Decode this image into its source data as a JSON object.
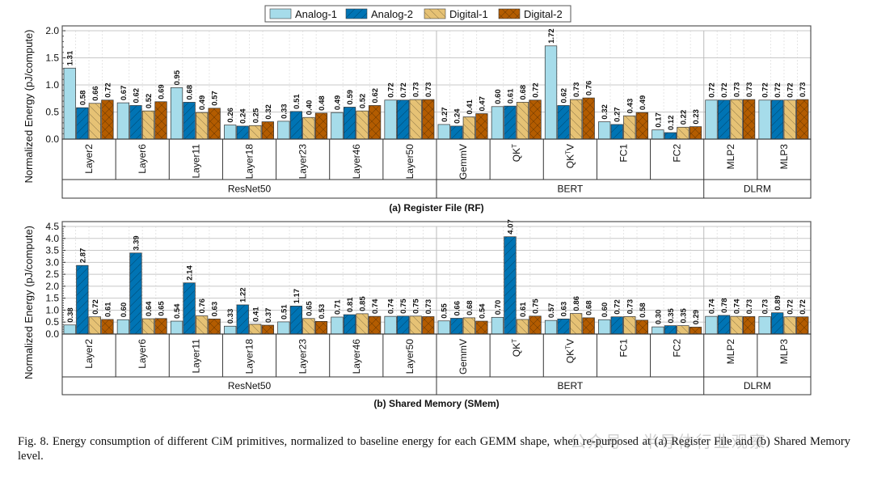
{
  "legend": [
    "Analog-1",
    "Analog-2",
    "Digital-1",
    "Digital-2"
  ],
  "colors": {
    "Analog-1": "#a6dcea",
    "Analog-2": "#0074b4",
    "Digital-1": "#e6c275",
    "Digital-2": "#b35c00"
  },
  "caption": "Fig. 8.  Energy consumption of different CiM primitives, normalized to baseline energy for each GEMM shape, when re-purposed at (a) Register File and (b) Shared Memory level.",
  "watermark": "公众号 · 半导体行业观察",
  "chart_data": [
    {
      "type": "bar",
      "title": "(a) Register File (RF)",
      "ylabel": "Normalized Energy (pJ/compute)",
      "ylim": [
        0,
        2.0
      ],
      "yticks": [
        "0.0",
        "0.5",
        "1.0",
        "1.5",
        "2.0"
      ],
      "categories": [
        "Layer2",
        "Layer6",
        "Layer11",
        "Layer18",
        "Layer23",
        "Layer46",
        "Layer50",
        "GemmV",
        "QK^T",
        "QK^TV",
        "FC1",
        "FC2",
        "MLP2",
        "MLP3"
      ],
      "groups": [
        {
          "name": "ResNet50",
          "count": 7
        },
        {
          "name": "BERT",
          "count": 5
        },
        {
          "name": "DLRM",
          "count": 2
        }
      ],
      "grid": true,
      "series": [
        {
          "name": "Analog-1",
          "values": [
            1.31,
            0.67,
            0.95,
            0.26,
            0.33,
            0.49,
            0.72,
            0.27,
            0.6,
            1.72,
            0.32,
            0.17,
            0.72,
            0.72
          ]
        },
        {
          "name": "Analog-2",
          "values": [
            0.58,
            0.62,
            0.68,
            0.24,
            0.51,
            0.59,
            0.72,
            0.24,
            0.61,
            0.62,
            0.27,
            0.12,
            0.72,
            0.72
          ]
        },
        {
          "name": "Digital-1",
          "values": [
            0.66,
            0.52,
            0.49,
            0.25,
            0.4,
            0.52,
            0.73,
            0.41,
            0.68,
            0.73,
            0.43,
            0.22,
            0.73,
            0.72
          ]
        },
        {
          "name": "Digital-2",
          "values": [
            0.72,
            0.69,
            0.57,
            0.32,
            0.48,
            0.62,
            0.73,
            0.47,
            0.72,
            0.76,
            0.49,
            0.23,
            0.73,
            0.73
          ]
        }
      ]
    },
    {
      "type": "bar",
      "title": "(b) Shared Memory (SMem)",
      "ylabel": "Normalized Energy (pJ/compute)",
      "ylim": [
        0,
        4.5
      ],
      "yticks": [
        "0.0",
        "0.5",
        "1.0",
        "1.5",
        "2.0",
        "2.5",
        "3.0",
        "3.5",
        "4.0",
        "4.5"
      ],
      "categories": [
        "Layer2",
        "Layer6",
        "Layer11",
        "Layer18",
        "Layer23",
        "Layer46",
        "Layer50",
        "GemmV",
        "QK^T",
        "QK^TV",
        "FC1",
        "FC2",
        "MLP2",
        "MLP3"
      ],
      "groups": [
        {
          "name": "ResNet50",
          "count": 7
        },
        {
          "name": "BERT",
          "count": 5
        },
        {
          "name": "DLRM",
          "count": 2
        }
      ],
      "grid": true,
      "series": [
        {
          "name": "Analog-1",
          "values": [
            0.38,
            0.6,
            0.54,
            0.33,
            0.51,
            0.71,
            0.74,
            0.55,
            0.7,
            0.57,
            0.6,
            0.3,
            0.74,
            0.73
          ]
        },
        {
          "name": "Analog-2",
          "values": [
            2.87,
            3.39,
            2.14,
            1.22,
            1.17,
            0.81,
            0.75,
            0.66,
            4.07,
            0.63,
            0.72,
            0.35,
            0.78,
            0.89
          ]
        },
        {
          "name": "Digital-1",
          "values": [
            0.72,
            0.64,
            0.76,
            0.41,
            0.65,
            0.85,
            0.75,
            0.68,
            0.61,
            0.86,
            0.73,
            0.35,
            0.74,
            0.72
          ]
        },
        {
          "name": "Digital-2",
          "values": [
            0.61,
            0.65,
            0.63,
            0.37,
            0.53,
            0.74,
            0.73,
            0.54,
            0.75,
            0.68,
            0.58,
            0.29,
            0.73,
            0.72
          ]
        }
      ]
    }
  ]
}
